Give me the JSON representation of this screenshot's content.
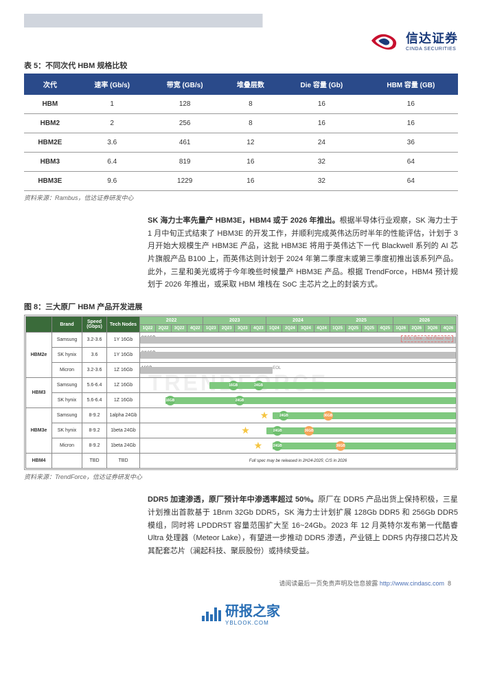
{
  "header": {
    "logo_cn": "信达证券",
    "logo_en": "CINDA SECURITIES",
    "logo_colors": {
      "red": "#c8102e",
      "blue": "#1a3a7a"
    }
  },
  "table5": {
    "caption": "表 5：不同次代 HBM 规格比较",
    "columns": [
      "次代",
      "速率 (Gb/s)",
      "带宽 (GB/s)",
      "堆叠层数",
      "Die 容量 (Gb)",
      "HBM 容量 (GB)"
    ],
    "rows": [
      [
        "HBM",
        "1",
        "128",
        "8",
        "16",
        "16"
      ],
      [
        "HBM2",
        "2",
        "256",
        "8",
        "16",
        "16"
      ],
      [
        "HBM2E",
        "3.6",
        "461",
        "12",
        "24",
        "36"
      ],
      [
        "HBM3",
        "6.4",
        "819",
        "16",
        "32",
        "64"
      ],
      [
        "HBM3E",
        "9.6",
        "1229",
        "16",
        "32",
        "64"
      ]
    ],
    "source": "资料来源：Rambus，信达证券研发中心",
    "header_bg": "#2a4a8a"
  },
  "para1": "<b>SK 海力士率先量产 HBM3E，HBM4 或于 2026 年推出。</b>根据半导体行业观察，SK 海力士于 1 月中旬正式结束了 HBM3E 的开发工作，并顺利完成英伟达历时半年的性能评估，计划于 3 月开始大规模生产 HBM3E 产品，这批 HBM3E 将用于英伟达下一代 Blackwell 系列的 AI 芯片旗舰产品 B100 上，而英伟达则计划于 2024 年第二季度末或第三季度初推出该系列产品。此外，三星和美光或将于今年晚些时候量产 HBM3E 产品。根据 TrendForce，HBM4 预计规划于 2026 年推出，或采取 HBM 堆栈在 SoC 主芯片之上的封装方式。",
  "fig8": {
    "caption": "图 8：三大原厂 HBM 产品开发进展",
    "hdr": {
      "brand": "Brand",
      "speed": "Speed (Gbps)",
      "tech": "Tech Nodes"
    },
    "years": [
      "2022",
      "2023",
      "2024",
      "2025",
      "2026"
    ],
    "quarters": [
      "1Q22",
      "2Q22",
      "3Q22",
      "4Q22",
      "1Q23",
      "2Q23",
      "3Q23",
      "4Q23",
      "1Q24",
      "2Q24",
      "3Q24",
      "4Q24",
      "1Q25",
      "2Q25",
      "3Q25",
      "4Q25",
      "1Q26",
      "2Q26",
      "3Q26",
      "4Q26"
    ],
    "groups": [
      {
        "name": "HBM2e",
        "rows": [
          {
            "brand": "Samsung",
            "speed": "3.2-3.6",
            "tech": "1Y 16Gb",
            "label_left": "8/16GB",
            "grey_left_pct": 0,
            "grey_width_pct": 100,
            "eol_note": "EOL Time : Not Fixed Yet"
          },
          {
            "brand": "SK hynix",
            "speed": "3.6",
            "tech": "1Y 16Gb",
            "label_left": "8/16GB",
            "grey_left_pct": 0,
            "grey_width_pct": 100
          },
          {
            "brand": "Micron",
            "speed": "3.2-3.6",
            "tech": "1Z 16Gb",
            "label_left": "16GB",
            "grey_left_pct": 0,
            "grey_width_pct": 42,
            "eol_mid": "EOL"
          }
        ]
      },
      {
        "name": "HBM3",
        "rows": [
          {
            "brand": "Samsung",
            "speed": "5.6-6.4",
            "tech": "1Z 16Gb",
            "green_left_pct": 22,
            "green_width_pct": 78,
            "dots": [
              {
                "pct": 28,
                "txt": "16GB",
                "cls": "g"
              },
              {
                "pct": 36,
                "txt": "24GB",
                "cls": "g"
              }
            ]
          },
          {
            "brand": "SK hynix",
            "speed": "5.6-6.4",
            "tech": "1Z 16Gb",
            "green_left_pct": 8,
            "green_width_pct": 92,
            "dots": [
              {
                "pct": 8,
                "txt": "16GB",
                "cls": "g"
              },
              {
                "pct": 30,
                "txt": "24GB",
                "cls": "g"
              }
            ]
          }
        ]
      },
      {
        "name": "HBM3e",
        "rows": [
          {
            "brand": "Samsung",
            "speed": "8-9.2",
            "tech": "1alpha 24Gb",
            "green_left_pct": 42,
            "green_width_pct": 58,
            "star_pct": 38,
            "dots": [
              {
                "pct": 44,
                "txt": "24GB",
                "cls": "g"
              },
              {
                "pct": 58,
                "txt": "36GB",
                "cls": "o"
              }
            ]
          },
          {
            "brand": "SK hynix",
            "speed": "8-9.2",
            "tech": "1beta 24Gb",
            "green_left_pct": 40,
            "green_width_pct": 60,
            "star_pct": 32,
            "dots": [
              {
                "pct": 42,
                "txt": "24GB",
                "cls": "g"
              },
              {
                "pct": 52,
                "txt": "36GB",
                "cls": "o"
              }
            ]
          },
          {
            "brand": "Micron",
            "speed": "8-9.2",
            "tech": "1beta 24Gb",
            "green_left_pct": 42,
            "green_width_pct": 58,
            "star_pct": 36,
            "dots": [
              {
                "pct": 42,
                "txt": "24GB",
                "cls": "g"
              },
              {
                "pct": 62,
                "txt": "36GB",
                "cls": "o"
              }
            ]
          }
        ]
      },
      {
        "name": "HBM4",
        "rows": [
          {
            "brand": "",
            "speed": "TBD",
            "tech": "TBD",
            "full_spec": "Full spec may be released in 2H24-2025; C/S in 2026"
          }
        ]
      }
    ],
    "source": "资料来源：TrendForce，信达证券研发中心",
    "watermark": "TRENDFORCE",
    "colors": {
      "hdr_dark": "#3a6b3a",
      "hdr_light": "#8fc88f",
      "grey_bar": "#bfbfbf",
      "green_bar": "#7fc97f",
      "dot_g": "#6fbf6f",
      "dot_o": "#f5a55a",
      "star": "#f5c542"
    }
  },
  "para2": "<b>DDR5 加速渗透，原厂预计年中渗透率超过 50%。</b>原厂在 DDR5 产品出货上保持积极，三星计划推出首款基于 1Bnm 32Gb DDR5，SK 海力士计划扩展 128Gb DDR5 和 256Gb DDR5 模组，同时将 LPDDR5T 容量范围扩大至 16~24Gb。2023 年 12 月英特尔发布第一代酷睿 Ultra 处理器（Meteor Lake），有望进一步推动 DDR5 渗透，产业链上 DDR5 内存接口芯片及其配套芯片（澜起科技、聚辰股份）或持续受益。",
  "footer": {
    "txt": "请阅读最后一页免责声明及信息披露",
    "url": "http://www.cindasc.com",
    "page": "8"
  },
  "bottom_logo": {
    "txt": "研报之家",
    "sub": "YBLOOK.COM",
    "color": "#2a6fb5",
    "bars": [
      8,
      14,
      10,
      20,
      16
    ]
  }
}
